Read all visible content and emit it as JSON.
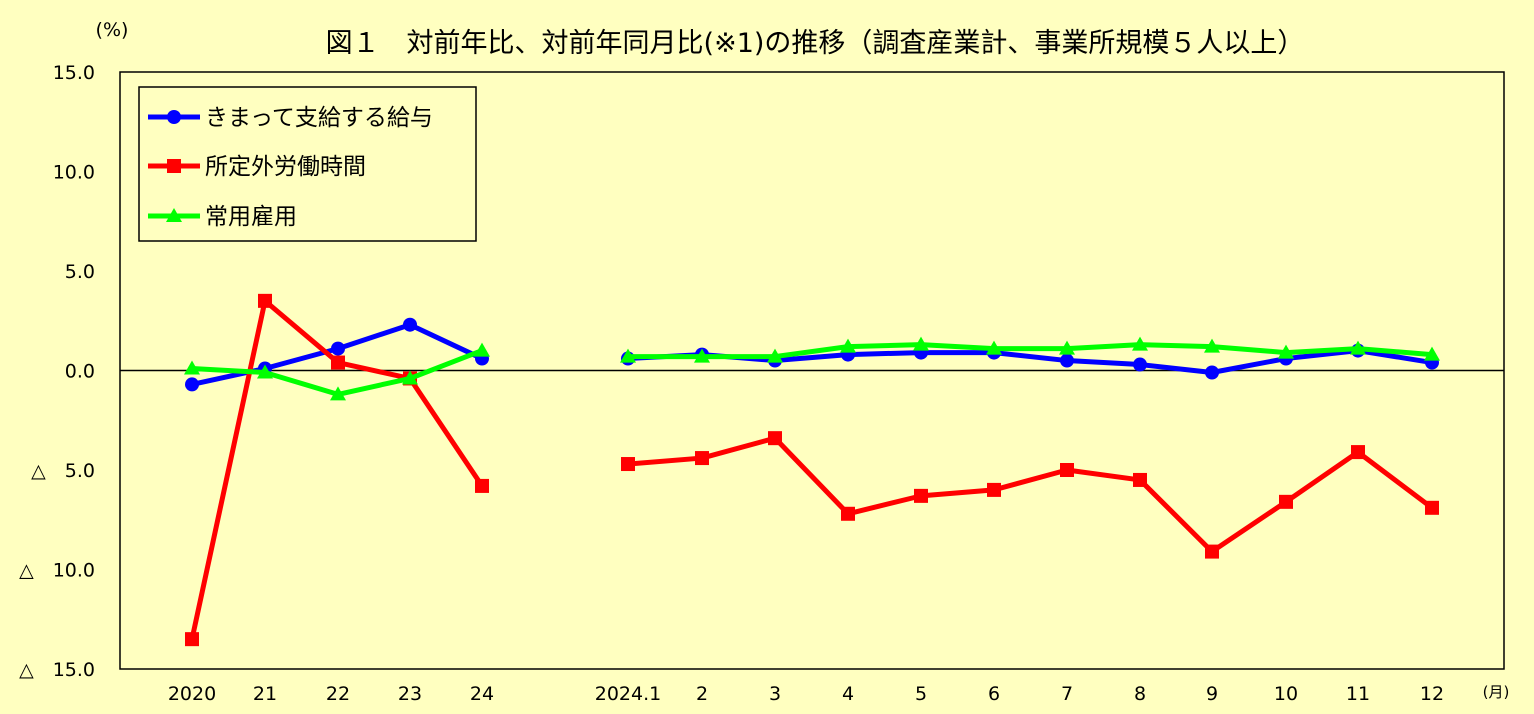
{
  "chart_data": {
    "type": "line",
    "title": "図１　対前年比、対前年同月比(※1)の推移（調査産業計、事業所規模５人以上）",
    "ylabel": "(%)",
    "xunit": "(月)",
    "ylim": [
      -15,
      15
    ],
    "yticks": [
      15,
      10,
      5,
      0,
      -5,
      -10,
      -15
    ],
    "ytick_labels": [
      "15.0",
      "10.0",
      "5.0",
      "0.0",
      "△　5.0",
      "△　10.0",
      "△　15.0"
    ],
    "categories": [
      "2020",
      "21",
      "22",
      "23",
      "24",
      "2024.1",
      "2",
      "3",
      "4",
      "5",
      "6",
      "7",
      "8",
      "9",
      "10",
      "11",
      "12"
    ],
    "segments": [
      [
        0,
        1,
        2,
        3,
        4
      ],
      [
        5,
        6,
        7,
        8,
        9,
        10,
        11,
        12,
        13,
        14,
        15,
        16
      ]
    ],
    "legend_position": "top-left",
    "grid": false,
    "series": [
      {
        "name": "きまって支給する給与",
        "color": "#0000ff",
        "marker": "circle",
        "values": [
          -0.7,
          0.1,
          1.1,
          2.3,
          0.6,
          0.6,
          0.8,
          0.5,
          0.8,
          0.9,
          0.9,
          0.5,
          0.3,
          -0.1,
          0.6,
          1.0,
          0.4
        ]
      },
      {
        "name": "所定外労働時間",
        "color": "#ff0000",
        "marker": "square",
        "values": [
          -13.5,
          3.5,
          0.4,
          -0.4,
          -5.8,
          -4.7,
          -4.4,
          -3.4,
          -7.2,
          -6.3,
          -6.0,
          -5.0,
          -5.5,
          -9.1,
          -6.6,
          -4.1,
          -6.9
        ]
      },
      {
        "name": "常用雇用",
        "color": "#00ff00",
        "marker": "triangle",
        "values": [
          0.1,
          -0.1,
          -1.2,
          -0.4,
          1.0,
          0.7,
          0.7,
          0.7,
          1.2,
          1.3,
          1.1,
          1.1,
          1.3,
          1.2,
          0.9,
          1.1,
          0.8
        ]
      }
    ]
  }
}
